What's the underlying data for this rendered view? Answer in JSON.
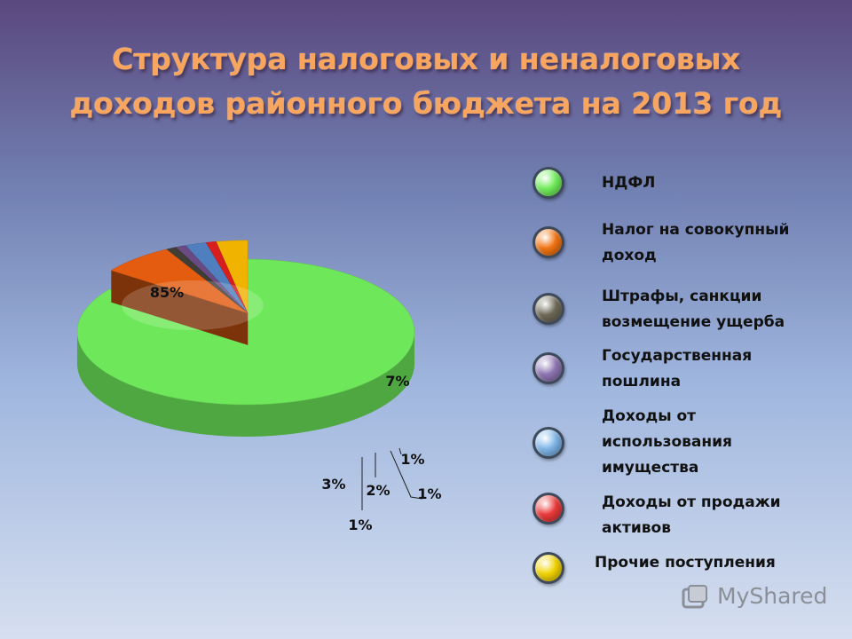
{
  "slide": {
    "title_lines": [
      "Структура налоговых и неналоговых",
      "доходов районного бюджета на 2013 год"
    ]
  },
  "chart_data": {
    "type": "pie",
    "title": "Структура налоговых и неналоговых доходов районного бюджета на 2013 год",
    "categories": [
      "НДФЛ",
      "Налог на совокупный доход",
      "Штрафы, санкции возмещение ущерба",
      "Государственная пошлина",
      "Доходы от использования имущества",
      "Доходы от продажи активов",
      "Прочие поступления"
    ],
    "values": [
      85,
      7,
      1,
      1,
      2,
      1,
      3
    ],
    "data_labels": [
      "85%",
      "7%",
      "1%",
      "1%",
      "2%",
      "1%",
      "3%"
    ],
    "colors": [
      "#6ee85a",
      "#e45c10",
      "#3f3d36",
      "#6a4a82",
      "#4f7fbf",
      "#d81d1d",
      "#f0b300"
    ],
    "legend_position": "right",
    "exploded": "small slices",
    "style": "3d"
  },
  "legend": {
    "items": [
      {
        "label": "НДФЛ",
        "color": "#70ee5a"
      },
      {
        "label": "Налог на совокупный доход",
        "color": "#f27412"
      },
      {
        "label": "Штрафы, санкции возмещение ущерба",
        "color": "#6f6a58"
      },
      {
        "label": "Государственная пошлина",
        "color": "#8f76b3"
      },
      {
        "label": "Доходы от использования имущества",
        "color": "#7fb6ea"
      },
      {
        "label": "Доходы от продажи активов",
        "color": "#ec3a3a"
      },
      {
        "label": "Прочие поступления",
        "color": "#f2d400"
      }
    ]
  },
  "watermark": {
    "text": "MyShared",
    "icon": "myshared-logo-icon"
  }
}
